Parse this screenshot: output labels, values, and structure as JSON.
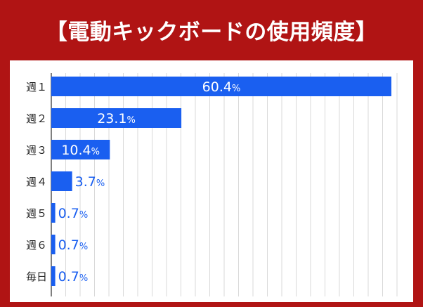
{
  "chart_data": {
    "type": "bar",
    "orientation": "horizontal",
    "title": "【電動キックボードの使用頻度】",
    "categories": [
      "週１",
      "週２",
      "週３",
      "週４",
      "週５",
      "週６",
      "毎日"
    ],
    "values": [
      60.4,
      23.1,
      10.4,
      3.7,
      0.7,
      0.7,
      0.7
    ],
    "value_labels": [
      "60.4%",
      "23.1%",
      "10.4%",
      "3.7%",
      "0.7%",
      "0.7%",
      "0.7%"
    ],
    "xlim": [
      0,
      65
    ],
    "grid": true,
    "xlabel": "",
    "ylabel": ""
  },
  "colors": {
    "frame": "#b01414",
    "bar": "#1a5ff0",
    "label_inside": "#ffffff",
    "label_outside": "#1a5ff0",
    "grid": "#d9d9d9",
    "axis": "#555555",
    "category_text": "#222222"
  }
}
